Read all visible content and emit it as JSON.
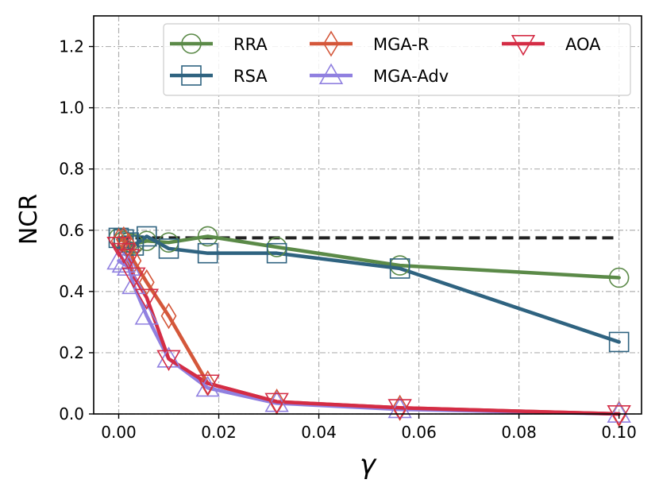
{
  "chart_data": {
    "type": "line",
    "title": "",
    "xlabel": "γ",
    "ylabel": "NCR",
    "xlim": [
      -0.005,
      0.1045
    ],
    "ylim": [
      0.0,
      1.3
    ],
    "xticks": [
      0.0,
      0.02,
      0.04,
      0.06,
      0.08,
      0.1
    ],
    "xtick_labels": [
      "0.00",
      "0.02",
      "0.04",
      "0.06",
      "0.08",
      "0.10"
    ],
    "yticks": [
      0.0,
      0.2,
      0.4,
      0.6,
      0.8,
      1.0,
      1.2
    ],
    "ytick_labels": [
      "0.0",
      "0.2",
      "0.4",
      "0.6",
      "0.8",
      "1.0",
      "1.2"
    ],
    "grid": true,
    "legend_position": "top",
    "reference_line": {
      "y": 0.575,
      "x_range": [
        0.0,
        0.1
      ],
      "style": "dashed",
      "color": "#222222"
    },
    "series": [
      {
        "name": "RRA",
        "color": "#5b8a48",
        "marker": "circle",
        "x": [
          0.0,
          0.001,
          0.002,
          0.003,
          0.0056,
          0.01,
          0.0178,
          0.0316,
          0.0562,
          0.1
        ],
        "y": [
          0.575,
          0.565,
          0.56,
          0.555,
          0.565,
          0.56,
          0.58,
          0.545,
          0.485,
          0.445
        ]
      },
      {
        "name": "RSA",
        "color": "#2f6380",
        "marker": "square",
        "x": [
          0.0,
          0.001,
          0.002,
          0.003,
          0.0056,
          0.01,
          0.0178,
          0.0316,
          0.0562,
          0.1
        ],
        "y": [
          0.575,
          0.57,
          0.56,
          0.55,
          0.58,
          0.54,
          0.525,
          0.525,
          0.475,
          0.235
        ]
      },
      {
        "name": "MGA-R",
        "color": "#d4573a",
        "marker": "diamond",
        "x": [
          0.0,
          0.001,
          0.002,
          0.003,
          0.0056,
          0.01,
          0.0178,
          0.0316,
          0.0562,
          0.1
        ],
        "y": [
          0.565,
          0.57,
          0.55,
          0.5,
          0.43,
          0.32,
          0.1,
          0.04,
          0.02,
          0.0
        ]
      },
      {
        "name": "MGA-Adv",
        "color": "#9080e0",
        "marker": "triangle-up",
        "x": [
          0.0,
          0.001,
          0.002,
          0.003,
          0.0056,
          0.01,
          0.0178,
          0.0316,
          0.0562,
          0.1
        ],
        "y": [
          0.5,
          0.49,
          0.48,
          0.42,
          0.32,
          0.18,
          0.085,
          0.035,
          0.015,
          0.0
        ]
      },
      {
        "name": "AOA",
        "color": "#d42c45",
        "marker": "triangle-down",
        "x": [
          0.0,
          0.001,
          0.002,
          0.003,
          0.0056,
          0.01,
          0.0178,
          0.0316,
          0.0562,
          0.1
        ],
        "y": [
          0.55,
          0.53,
          0.51,
          0.45,
          0.38,
          0.18,
          0.1,
          0.04,
          0.02,
          0.0
        ]
      }
    ]
  }
}
